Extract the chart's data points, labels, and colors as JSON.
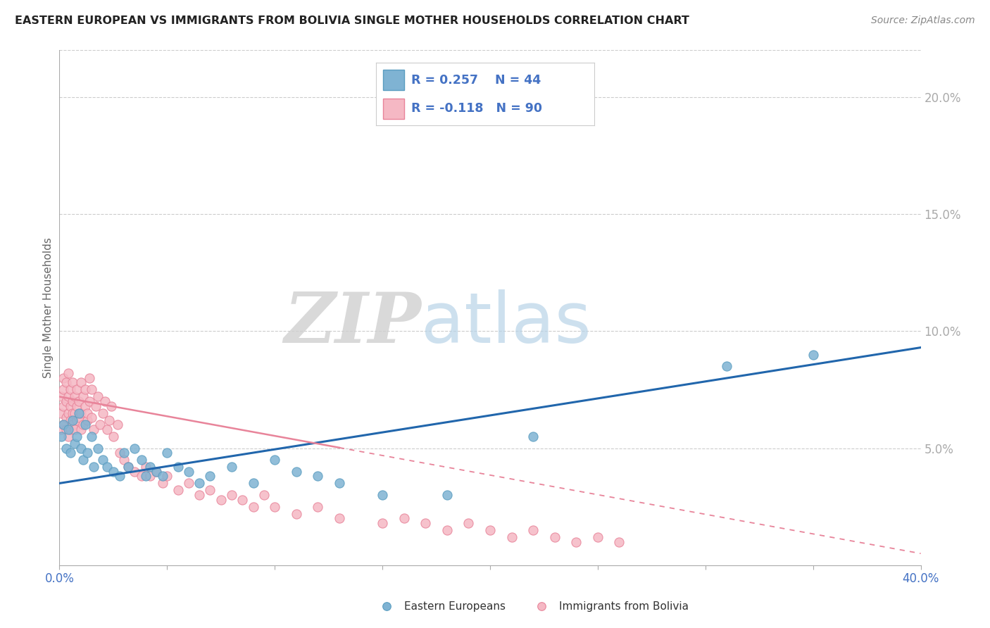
{
  "title": "EASTERN EUROPEAN VS IMMIGRANTS FROM BOLIVIA SINGLE MOTHER HOUSEHOLDS CORRELATION CHART",
  "source": "Source: ZipAtlas.com",
  "ylabel": "Single Mother Households",
  "watermark_zip": "ZIP",
  "watermark_atlas": "atlas",
  "xlim": [
    0.0,
    0.4
  ],
  "ylim": [
    0.0,
    0.22
  ],
  "xtick_positions": [
    0.0,
    0.05,
    0.1,
    0.15,
    0.2,
    0.25,
    0.3,
    0.35,
    0.4
  ],
  "xtick_labels_show": {
    "0.0": "0.0%",
    "0.40": "40.0%"
  },
  "yticks_right": [
    0.05,
    0.1,
    0.15,
    0.2
  ],
  "blue_color": "#7fb3d3",
  "blue_edge": "#5a9dc0",
  "pink_color": "#f5b8c4",
  "pink_edge": "#e8849a",
  "trend_blue_color": "#2166ac",
  "trend_pink_color": "#e8849a",
  "text_color": "#4472c4",
  "legend_label1": "Eastern Europeans",
  "legend_label2": "Immigrants from Bolivia",
  "legend_R1": "R = 0.257",
  "legend_N1": "N = 44",
  "legend_R2": "R = -0.118",
  "legend_N2": "N = 90",
  "blue_scatter_x": [
    0.001,
    0.002,
    0.003,
    0.004,
    0.005,
    0.006,
    0.007,
    0.008,
    0.009,
    0.01,
    0.011,
    0.012,
    0.013,
    0.015,
    0.016,
    0.018,
    0.02,
    0.022,
    0.025,
    0.028,
    0.03,
    0.032,
    0.035,
    0.038,
    0.04,
    0.042,
    0.045,
    0.048,
    0.05,
    0.055,
    0.06,
    0.065,
    0.07,
    0.08,
    0.09,
    0.1,
    0.11,
    0.12,
    0.13,
    0.15,
    0.18,
    0.22,
    0.31,
    0.35
  ],
  "blue_scatter_y": [
    0.055,
    0.06,
    0.05,
    0.058,
    0.048,
    0.062,
    0.052,
    0.055,
    0.065,
    0.05,
    0.045,
    0.06,
    0.048,
    0.055,
    0.042,
    0.05,
    0.045,
    0.042,
    0.04,
    0.038,
    0.048,
    0.042,
    0.05,
    0.045,
    0.038,
    0.042,
    0.04,
    0.038,
    0.048,
    0.042,
    0.04,
    0.035,
    0.038,
    0.042,
    0.035,
    0.045,
    0.04,
    0.038,
    0.035,
    0.03,
    0.03,
    0.055,
    0.085,
    0.09
  ],
  "pink_scatter_x": [
    0.001,
    0.001,
    0.001,
    0.002,
    0.002,
    0.002,
    0.002,
    0.003,
    0.003,
    0.003,
    0.003,
    0.004,
    0.004,
    0.004,
    0.004,
    0.005,
    0.005,
    0.005,
    0.005,
    0.006,
    0.006,
    0.006,
    0.006,
    0.007,
    0.007,
    0.007,
    0.008,
    0.008,
    0.008,
    0.009,
    0.009,
    0.01,
    0.01,
    0.01,
    0.011,
    0.011,
    0.012,
    0.012,
    0.013,
    0.013,
    0.014,
    0.014,
    0.015,
    0.015,
    0.016,
    0.017,
    0.018,
    0.019,
    0.02,
    0.021,
    0.022,
    0.023,
    0.024,
    0.025,
    0.027,
    0.028,
    0.03,
    0.032,
    0.035,
    0.038,
    0.04,
    0.042,
    0.045,
    0.048,
    0.05,
    0.055,
    0.06,
    0.065,
    0.07,
    0.075,
    0.08,
    0.085,
    0.09,
    0.095,
    0.1,
    0.11,
    0.12,
    0.13,
    0.15,
    0.16,
    0.17,
    0.18,
    0.19,
    0.2,
    0.21,
    0.22,
    0.23,
    0.24,
    0.25,
    0.26
  ],
  "pink_scatter_y": [
    0.065,
    0.072,
    0.058,
    0.075,
    0.068,
    0.06,
    0.08,
    0.07,
    0.063,
    0.078,
    0.058,
    0.072,
    0.065,
    0.082,
    0.055,
    0.068,
    0.062,
    0.075,
    0.058,
    0.07,
    0.065,
    0.078,
    0.06,
    0.072,
    0.065,
    0.058,
    0.075,
    0.068,
    0.062,
    0.07,
    0.063,
    0.078,
    0.058,
    0.065,
    0.072,
    0.06,
    0.068,
    0.075,
    0.062,
    0.065,
    0.08,
    0.07,
    0.063,
    0.075,
    0.058,
    0.068,
    0.072,
    0.06,
    0.065,
    0.07,
    0.058,
    0.062,
    0.068,
    0.055,
    0.06,
    0.048,
    0.045,
    0.042,
    0.04,
    0.038,
    0.042,
    0.038,
    0.04,
    0.035,
    0.038,
    0.032,
    0.035,
    0.03,
    0.032,
    0.028,
    0.03,
    0.028,
    0.025,
    0.03,
    0.025,
    0.022,
    0.025,
    0.02,
    0.018,
    0.02,
    0.018,
    0.015,
    0.018,
    0.015,
    0.012,
    0.015,
    0.012,
    0.01,
    0.012,
    0.01
  ],
  "blue_trend_x0": 0.0,
  "blue_trend_y0": 0.035,
  "blue_trend_x1": 0.4,
  "blue_trend_y1": 0.093,
  "pink_trend_x0": 0.0,
  "pink_trend_y0": 0.072,
  "pink_trend_x1": 0.4,
  "pink_trend_y1": 0.005
}
